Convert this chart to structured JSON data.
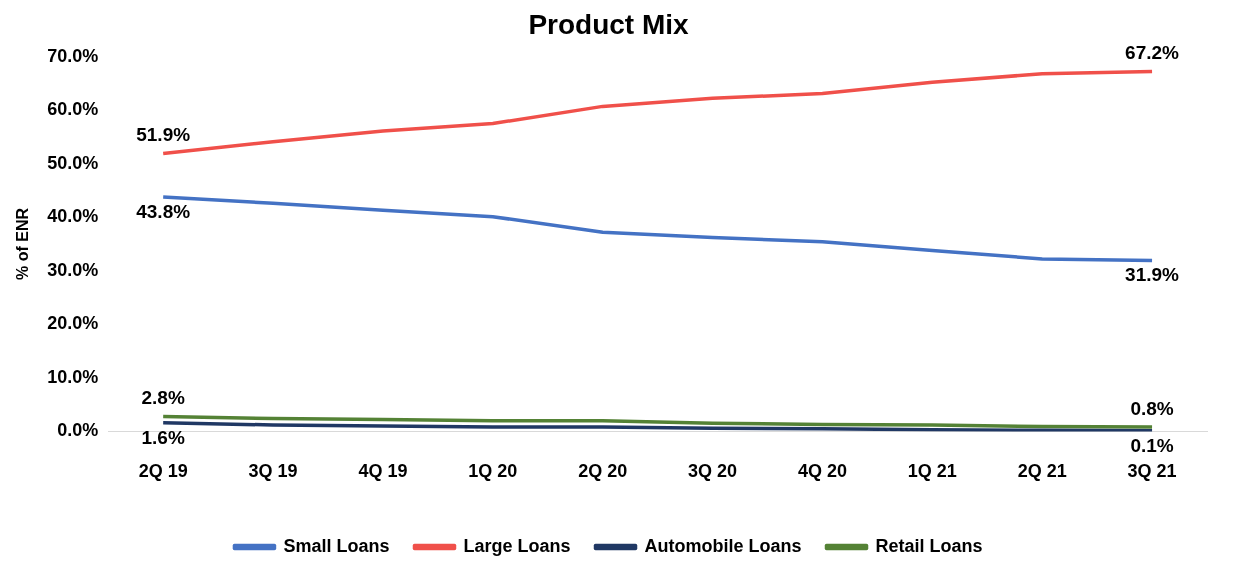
{
  "chart_data": {
    "type": "line",
    "title": "Product Mix",
    "ylabel": "% of ENR",
    "categories": [
      "2Q 19",
      "3Q 19",
      "4Q 19",
      "1Q 20",
      "2Q 20",
      "3Q 20",
      "4Q 20",
      "1Q 21",
      "2Q 21",
      "3Q 21"
    ],
    "series": [
      {
        "name": "Small Loans",
        "color": "#4472c4",
        "values": [
          43.8,
          42.6,
          41.3,
          40.1,
          37.2,
          36.2,
          35.4,
          33.8,
          32.2,
          31.9
        ],
        "value_labels": [
          "43.8%",
          null,
          null,
          null,
          null,
          null,
          null,
          null,
          null,
          "31.9%"
        ]
      },
      {
        "name": "Large Loans",
        "color": "#f0504a",
        "values": [
          51.9,
          54.1,
          56.1,
          57.5,
          60.7,
          62.2,
          63.1,
          65.2,
          66.8,
          67.2
        ],
        "value_labels": [
          "51.9%",
          null,
          null,
          null,
          null,
          null,
          null,
          null,
          null,
          "67.2%"
        ]
      },
      {
        "name": "Automobile Loans",
        "color": "#203864",
        "values": [
          1.6,
          1.2,
          1.0,
          0.8,
          0.8,
          0.6,
          0.5,
          0.3,
          0.2,
          0.1
        ],
        "value_labels": [
          "1.6%",
          null,
          null,
          null,
          null,
          null,
          null,
          null,
          null,
          "0.1%"
        ]
      },
      {
        "name": "Retail Loans",
        "color": "#548235",
        "values": [
          2.8,
          2.4,
          2.2,
          2.0,
          2.0,
          1.5,
          1.3,
          1.2,
          0.9,
          0.8
        ],
        "value_labels": [
          "2.8%",
          null,
          null,
          null,
          null,
          null,
          null,
          null,
          null,
          "0.8%"
        ]
      }
    ],
    "ylim": [
      0,
      70
    ],
    "yticks": [
      {
        "value": 0,
        "label": "0.0%"
      },
      {
        "value": 10,
        "label": "10.0%"
      },
      {
        "value": 20,
        "label": "20.0%"
      },
      {
        "value": 30,
        "label": "30.0%"
      },
      {
        "value": 40,
        "label": "40.0%"
      },
      {
        "value": 50,
        "label": "50.0%"
      },
      {
        "value": 60,
        "label": "60.0%"
      },
      {
        "value": 70,
        "label": "70.0%"
      }
    ],
    "grid": false,
    "legend": "bottom",
    "marker": "none",
    "line_style": "solid"
  }
}
